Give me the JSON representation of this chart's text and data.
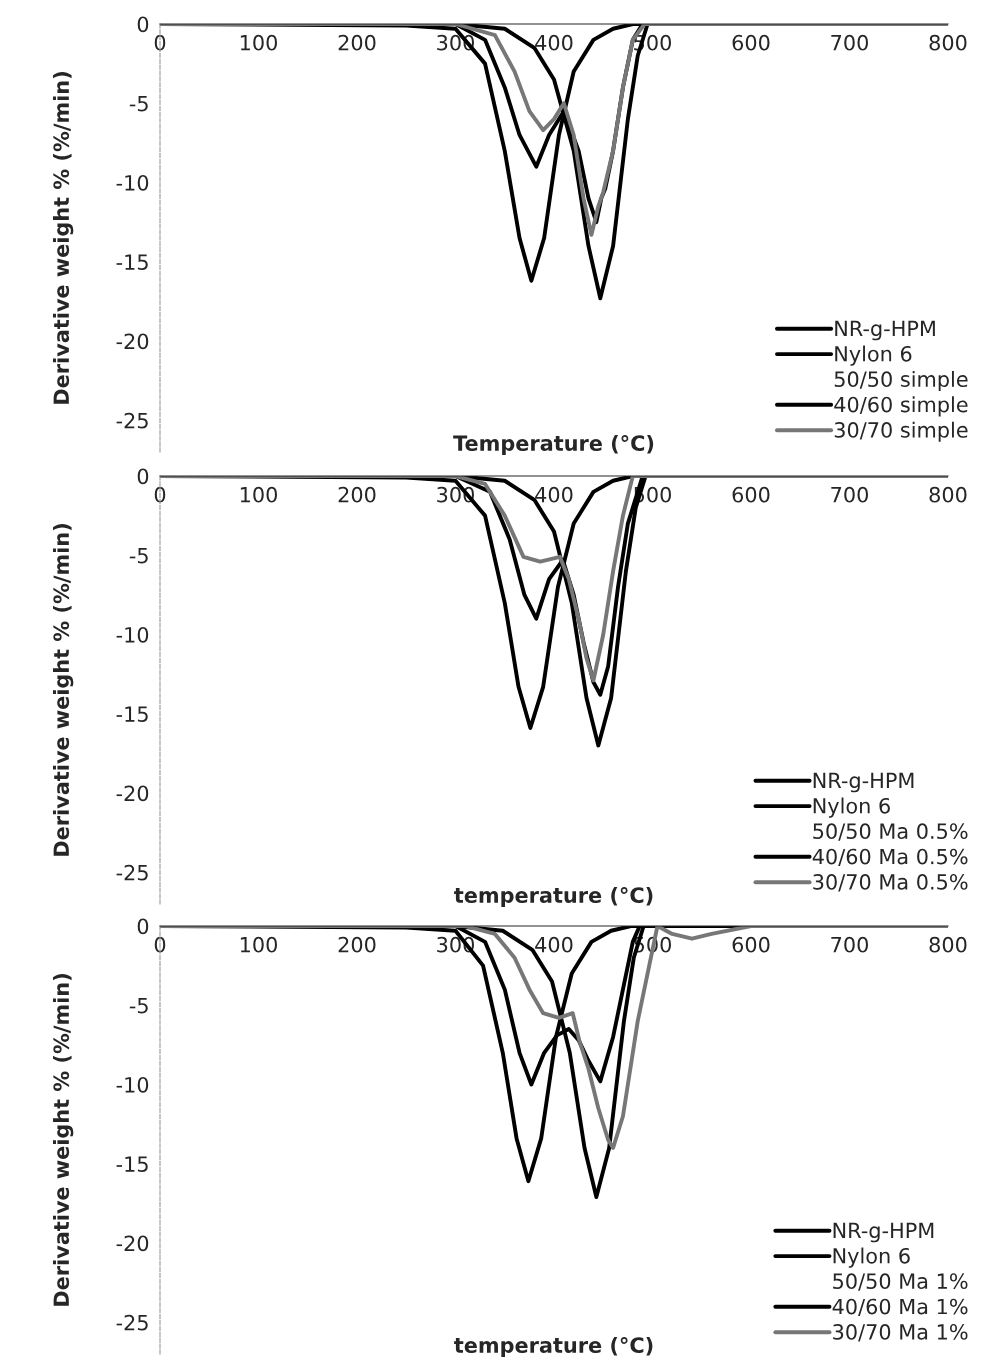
{
  "chart_data": [
    {
      "type": "line",
      "annotations": [
        "50/50 simple"
      ],
      "xlabel": "Temperature (°C)",
      "ylabel": "Derivative weight % (%/min)",
      "xlim": [
        0,
        800
      ],
      "ylim": [
        -27,
        0
      ],
      "xticks": [
        0,
        100,
        200,
        300,
        400,
        500,
        600,
        700,
        800
      ],
      "yticks": [
        0,
        {
          "value": -5,
          "label": "-5"
        },
        {
          "value": -10,
          "label": "-10"
        },
        {
          "value": -15,
          "label": "-15"
        },
        {
          "value": -20,
          "label": "-20"
        },
        {
          "value": -25,
          "label": "-25"
        }
      ],
      "legend": "bottom right",
      "series": [
        {
          "name": "NR-g-HPM",
          "color": "#000000",
          "x": [
            0,
            250,
            300,
            330,
            350,
            365,
            377,
            390,
            405,
            420,
            440,
            460,
            480,
            800
          ],
          "values": [
            0,
            -0.1,
            -0.3,
            -2.5,
            -8,
            -13.5,
            -16.2,
            -13.5,
            -7,
            -3,
            -1,
            -0.3,
            0,
            0
          ]
        },
        {
          "name": "Nylon 6",
          "color": "#000000",
          "x": [
            0,
            300,
            350,
            380,
            400,
            420,
            435,
            447,
            460,
            475,
            485,
            495,
            800
          ],
          "values": [
            0,
            0,
            -0.3,
            -1.5,
            -3.5,
            -8,
            -14,
            -17.3,
            -14,
            -6,
            -2,
            0,
            0
          ]
        },
        {
          "name": "40/60 simple",
          "color": "#000000",
          "x": [
            0,
            300,
            330,
            350,
            365,
            382,
            395,
            410,
            425,
            435,
            443,
            448,
            452,
            460,
            470,
            480,
            490,
            800
          ],
          "values": [
            0,
            0,
            -1,
            -4,
            -7,
            -9,
            -7,
            -5.5,
            -8,
            -11,
            -12.5,
            -11,
            -10.4,
            -8,
            -4,
            -1,
            0,
            0
          ]
        },
        {
          "name": "30/70 simple",
          "color": "#777777",
          "x": [
            0,
            300,
            340,
            360,
            375,
            389,
            400,
            410,
            420,
            430,
            438,
            445,
            450,
            460,
            470,
            480,
            492,
            800
          ],
          "values": [
            0,
            0,
            -0.7,
            -3,
            -5.5,
            -6.7,
            -6,
            -5,
            -7,
            -11,
            -13.3,
            -11.5,
            -10.6,
            -8,
            -4,
            -1,
            0,
            0
          ]
        }
      ]
    },
    {
      "type": "line",
      "annotations": [
        "50/50 Ma 0.5%"
      ],
      "xlabel": "temperature (°C)",
      "ylabel": "Derivative weight % (%/min)",
      "xlim": [
        0,
        800
      ],
      "ylim": [
        -27,
        0
      ],
      "xticks": [
        0,
        100,
        200,
        300,
        400,
        500,
        600,
        700,
        800
      ],
      "yticks": [
        0,
        {
          "value": -5,
          "label": "-5"
        },
        {
          "value": -10,
          "label": "-10"
        },
        {
          "value": -15,
          "label": "-15"
        },
        {
          "value": -20,
          "label": "-20"
        },
        {
          "value": -25,
          "label": "-25"
        }
      ],
      "legend": "bottom right",
      "series": [
        {
          "name": "NR-g-HPM",
          "color": "#000000",
          "x": [
            0,
            250,
            300,
            330,
            350,
            364,
            376,
            389,
            404,
            420,
            440,
            460,
            480,
            800
          ],
          "values": [
            0,
            -0.1,
            -0.3,
            -2.5,
            -8,
            -13.3,
            -15.9,
            -13.3,
            -7,
            -3,
            -1,
            -0.3,
            0,
            0
          ]
        },
        {
          "name": "Nylon 6",
          "color": "#000000",
          "x": [
            0,
            300,
            350,
            380,
            400,
            418,
            433,
            445,
            458,
            473,
            483,
            493,
            800
          ],
          "values": [
            0,
            0,
            -0.3,
            -1.5,
            -3.5,
            -8,
            -14,
            -17,
            -14,
            -6,
            -2,
            0,
            0
          ]
        },
        {
          "name": "40/60 Ma 0.5%",
          "color": "#000000",
          "x": [
            0,
            300,
            335,
            355,
            370,
            382,
            395,
            409,
            420,
            430,
            440,
            447,
            455,
            465,
            475,
            490,
            800
          ],
          "values": [
            0,
            0,
            -1,
            -4,
            -7.5,
            -9,
            -6.5,
            -5.3,
            -7.5,
            -10.5,
            -13,
            -13.8,
            -12,
            -7,
            -3,
            0,
            0
          ]
        },
        {
          "name": "30/70 Ma 0.5%",
          "color": "#777777",
          "x": [
            0,
            300,
            330,
            350,
            369,
            386,
            406,
            415,
            425,
            433,
            440,
            450,
            460,
            470,
            480,
            800
          ],
          "values": [
            0,
            0,
            -0.5,
            -2.5,
            -5.1,
            -5.4,
            -5.1,
            -6.5,
            -9,
            -11.5,
            -12.9,
            -10,
            -6,
            -2.5,
            0,
            0
          ]
        }
      ]
    },
    {
      "type": "line",
      "annotations": [
        "50/50 Ma 1%"
      ],
      "xlabel": "temperature (°C)",
      "ylabel": "Derivative weight % (%/min)",
      "xlim": [
        0,
        800
      ],
      "ylim": [
        -27,
        0
      ],
      "xticks": [
        0,
        100,
        200,
        300,
        400,
        500,
        600,
        700,
        800
      ],
      "yticks": [
        0,
        {
          "value": -5,
          "label": "-5"
        },
        {
          "value": -10,
          "label": "-10"
        },
        {
          "value": -15,
          "label": "-15"
        },
        {
          "value": -20,
          "label": "-20"
        },
        {
          "value": -25,
          "label": "-25"
        }
      ],
      "legend": "bottom right",
      "series": [
        {
          "name": "NR-g-HPM",
          "color": "#000000",
          "x": [
            0,
            250,
            300,
            328,
            348,
            362,
            374,
            387,
            402,
            418,
            438,
            458,
            478,
            800
          ],
          "values": [
            0,
            -0.1,
            -0.3,
            -2.5,
            -8,
            -13.4,
            -16.1,
            -13.4,
            -7,
            -3,
            -1,
            -0.3,
            0,
            0
          ]
        },
        {
          "name": "Nylon 6",
          "color": "#000000",
          "x": [
            0,
            300,
            348,
            378,
            398,
            416,
            431,
            443,
            456,
            471,
            481,
            491,
            800
          ],
          "values": [
            0,
            0,
            -0.3,
            -1.5,
            -3.5,
            -8,
            -14,
            -17.1,
            -14,
            -6,
            -2,
            0,
            0
          ]
        },
        {
          "name": "40/60 Ma 1%",
          "color": "#000000",
          "x": [
            0,
            300,
            330,
            350,
            365,
            377,
            390,
            403,
            415,
            425,
            435,
            447,
            460,
            470,
            480,
            487,
            800
          ],
          "values": [
            0,
            0,
            -1,
            -4,
            -8,
            -10,
            -8,
            -6.9,
            -6.5,
            -7.2,
            -8.5,
            -9.8,
            -7,
            -4,
            -1,
            0,
            0
          ]
        },
        {
          "name": "30/70 Ma 1%",
          "color": "#777777",
          "x": [
            0,
            310,
            340,
            360,
            375,
            389,
            405,
            419,
            426,
            435,
            445,
            455,
            460,
            470,
            485,
            505,
            520,
            540,
            560,
            600,
            800
          ],
          "values": [
            0,
            0,
            -0.5,
            -2,
            -4,
            -5.5,
            -5.8,
            -5.5,
            -7.3,
            -9,
            -11.5,
            -13.5,
            -14,
            -12,
            -6,
            0,
            -0.5,
            -0.8,
            -0.5,
            0,
            0
          ]
        }
      ]
    }
  ]
}
